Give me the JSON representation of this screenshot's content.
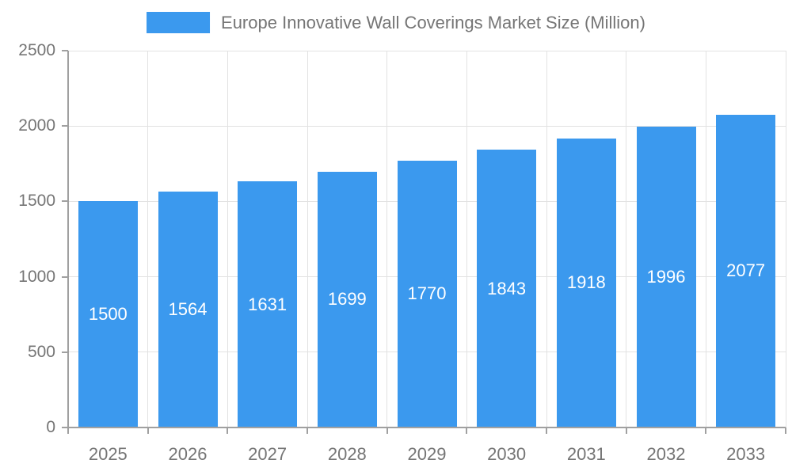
{
  "chart_data": {
    "type": "bar",
    "title": "Europe Innovative Wall Coverings Market Size (Million)",
    "categories": [
      "2025",
      "2026",
      "2027",
      "2028",
      "2029",
      "2030",
      "2031",
      "2032",
      "2033"
    ],
    "values": [
      1500,
      1564,
      1631,
      1699,
      1770,
      1843,
      1918,
      1996,
      2077
    ],
    "xlabel": "",
    "ylabel": "",
    "ylim": [
      0,
      2500
    ],
    "yticks": [
      0,
      500,
      1000,
      1500,
      2000,
      2500
    ],
    "grid": "both",
    "legend_position": "top",
    "bar_labels_inside": true
  },
  "colors": {
    "bar": "#3B99EE",
    "grid": "#E2E2E2",
    "axis": "#A0A0A0",
    "tick_text": "#757575",
    "title_text": "#757575",
    "value_text": "#FFFFFF",
    "background": "#FFFFFF"
  }
}
